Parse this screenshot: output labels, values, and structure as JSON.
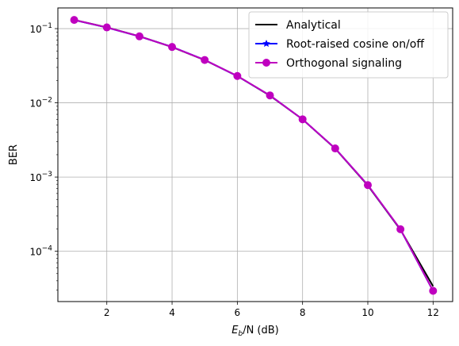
{
  "chart_data": {
    "type": "line",
    "xlabel": "",
    "xlabel_parts": {
      "main": "E",
      "sub": "b",
      "rest": "/N (dB)"
    },
    "ylabel": "BER",
    "yscale": "log",
    "xlim": [
      0.5,
      12.6
    ],
    "ylim": [
      2.1e-05,
      0.19
    ],
    "grid": true,
    "legend_position": "top-right",
    "x_ticks": [
      2,
      4,
      6,
      8,
      10,
      12
    ],
    "x_tick_labels": [
      "2",
      "4",
      "6",
      "8",
      "10",
      "12"
    ],
    "y_ticks": [
      0.0001,
      0.001,
      0.01,
      0.1
    ],
    "y_tick_labels": [
      {
        "base": "10",
        "exp": "−4"
      },
      {
        "base": "10",
        "exp": "−3"
      },
      {
        "base": "10",
        "exp": "−2"
      },
      {
        "base": "10",
        "exp": "−1"
      }
    ],
    "x": [
      1,
      2,
      3,
      4,
      5,
      6,
      7,
      8,
      9,
      10,
      11,
      12
    ],
    "series": [
      {
        "name": "Analytical",
        "color": "#000000",
        "marker": "none",
        "values": [
          0.1309,
          0.104,
          0.0789,
          0.0565,
          0.0377,
          0.023,
          0.0125,
          0.006,
          0.00242,
          0.00077,
          0.000195,
          3.37e-05
        ]
      },
      {
        "name": "Root-raised cosine on/off",
        "color": "#0000ff",
        "marker": "star",
        "values": [
          0.1305,
          0.1035,
          0.0785,
          0.0568,
          0.0379,
          0.0229,
          0.0126,
          0.006,
          0.00243,
          0.00078,
          0.000197,
          2.92e-05
        ]
      },
      {
        "name": "Orthogonal signaling",
        "color": "#bf00bf",
        "marker": "circle",
        "values": [
          0.131,
          0.1038,
          0.0787,
          0.0566,
          0.0378,
          0.023,
          0.0126,
          0.006,
          0.00243,
          0.00078,
          0.000198,
          2.93e-05
        ]
      }
    ]
  }
}
